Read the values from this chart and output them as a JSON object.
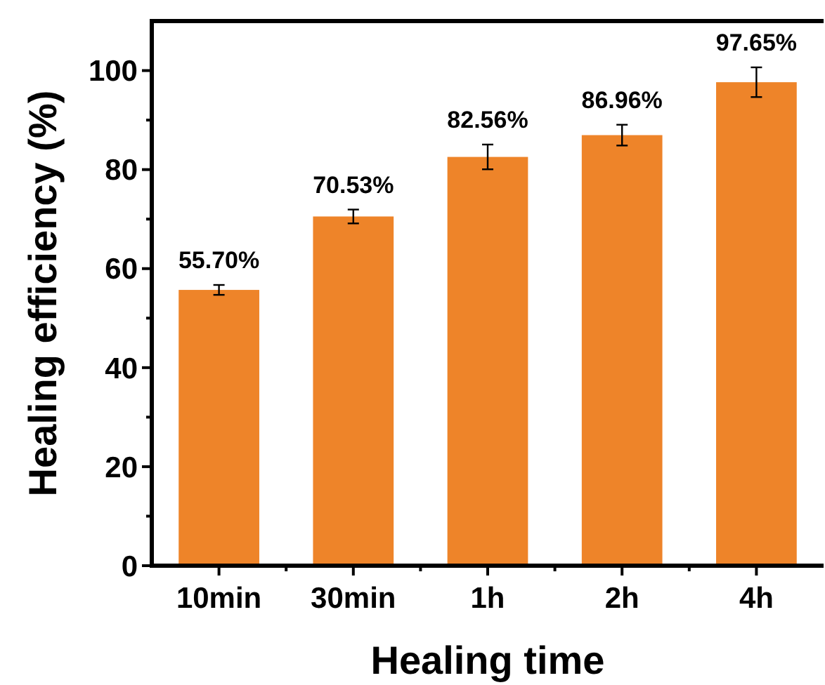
{
  "chart_data": {
    "type": "bar",
    "xlabel": "Healing time",
    "ylabel": "Healing efficiency (%)",
    "categories": [
      "10min",
      "30min",
      "1h",
      "2h",
      "4h"
    ],
    "values": [
      55.7,
      70.53,
      82.56,
      86.96,
      97.65
    ],
    "errors": [
      1,
      1.4,
      2.5,
      2.1,
      3
    ],
    "value_labels": [
      "55.70%",
      "70.53%",
      "82.56%",
      "86.96%",
      "97.65%"
    ],
    "color": "#ee8429",
    "ylim": [
      0,
      110
    ],
    "yticks": [
      0,
      {
        "value": 10,
        "label": null
      },
      20,
      {
        "value": 30,
        "label": null
      },
      40,
      {
        "value": 50,
        "label": null
      },
      60,
      {
        "value": 70,
        "label": null
      },
      80,
      {
        "value": 90,
        "label": null
      },
      100
    ],
    "grid": false
  }
}
